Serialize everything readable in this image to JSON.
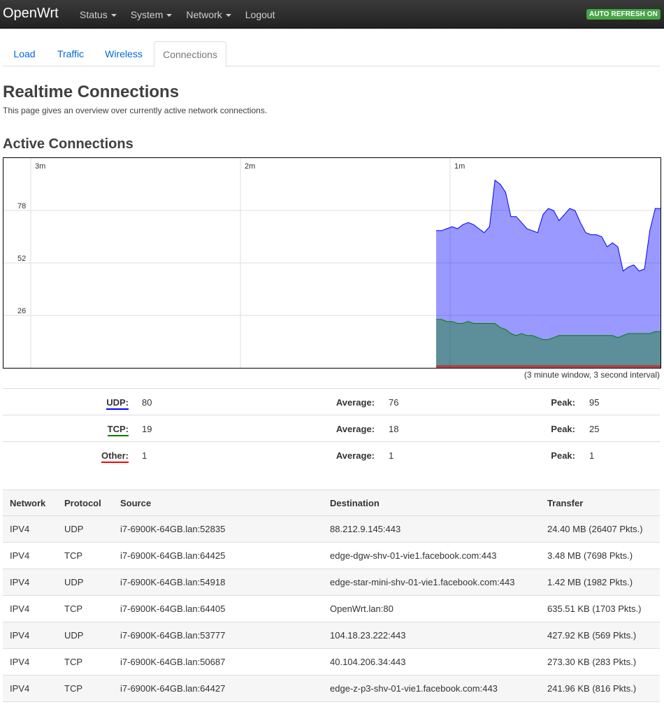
{
  "nav": {
    "brand": "OpenWrt",
    "menu": [
      {
        "label": "Status",
        "dropdown": true
      },
      {
        "label": "System",
        "dropdown": true
      },
      {
        "label": "Network",
        "dropdown": true
      },
      {
        "label": "Logout",
        "dropdown": false
      }
    ],
    "auto_refresh": "AUTO REFRESH ON"
  },
  "tabs": [
    {
      "label": "Load",
      "active": false
    },
    {
      "label": "Traffic",
      "active": false
    },
    {
      "label": "Wireless",
      "active": false
    },
    {
      "label": "Connections",
      "active": true
    }
  ],
  "page": {
    "title": "Realtime Connections",
    "description": "This page gives an overview over currently active network connections.",
    "section_title": "Active Connections",
    "window_caption": "(3 minute window, 3 second interval)"
  },
  "chart_data": {
    "type": "area",
    "x_ticks": [
      "3m",
      "2m",
      "1m"
    ],
    "y_ticks": [
      78,
      52,
      26
    ],
    "ylim": [
      0,
      104
    ],
    "grid": true,
    "series": [
      {
        "name": "UDP",
        "color": "#0000ff",
        "values": [
          68,
          68,
          69,
          70,
          69,
          71,
          72,
          71,
          69,
          67,
          70,
          93,
          91,
          87,
          75,
          75,
          72,
          69,
          68,
          67,
          76,
          79,
          78,
          73,
          76,
          79,
          78,
          72,
          67,
          66,
          66,
          65,
          60,
          62,
          60,
          48,
          50,
          51,
          48,
          49,
          68,
          79,
          79
        ]
      },
      {
        "name": "TCP",
        "color": "#008000",
        "values": [
          24,
          24,
          23,
          23,
          22,
          22,
          23,
          22,
          22,
          22,
          22,
          22,
          20,
          19,
          17,
          16,
          17,
          16,
          16,
          15,
          14,
          14,
          15,
          16,
          16,
          16,
          16,
          16,
          16,
          16,
          16,
          16,
          16,
          16,
          15,
          16,
          17,
          17,
          17,
          17,
          17,
          18,
          18
        ]
      },
      {
        "name": "Other",
        "color": "#ff0000",
        "values": [
          1,
          1,
          1,
          1,
          1,
          1,
          1,
          1,
          1,
          1,
          1,
          1,
          1,
          1,
          1,
          1,
          1,
          1,
          1,
          1,
          1,
          1,
          1,
          1,
          1,
          1,
          1,
          1,
          1,
          1,
          1,
          1,
          1,
          1,
          1,
          1,
          1,
          1,
          1,
          1,
          1,
          1,
          1
        ]
      }
    ]
  },
  "stats": [
    {
      "label": "UDP:",
      "cls": "udp",
      "current": "80",
      "avg_label": "Average:",
      "average": "76",
      "peak_label": "Peak:",
      "peak": "95"
    },
    {
      "label": "TCP:",
      "cls": "tcp",
      "current": "19",
      "avg_label": "Average:",
      "average": "18",
      "peak_label": "Peak:",
      "peak": "25"
    },
    {
      "label": "Other:",
      "cls": "other",
      "current": "1",
      "avg_label": "Average:",
      "average": "1",
      "peak_label": "Peak:",
      "peak": "1"
    }
  ],
  "connections": {
    "headers": [
      "Network",
      "Protocol",
      "Source",
      "Destination",
      "Transfer"
    ],
    "rows": [
      [
        "IPV4",
        "UDP",
        "i7-6900K-64GB.lan:52835",
        "88.212.9.145:443",
        "24.40 MB (26407 Pkts.)"
      ],
      [
        "IPV4",
        "TCP",
        "i7-6900K-64GB.lan:64425",
        "edge-dgw-shv-01-vie1.facebook.com:443",
        "3.48 MB (7698 Pkts.)"
      ],
      [
        "IPV4",
        "UDP",
        "i7-6900K-64GB.lan:54918",
        "edge-star-mini-shv-01-vie1.facebook.com:443",
        "1.42 MB (1982 Pkts.)"
      ],
      [
        "IPV4",
        "TCP",
        "i7-6900K-64GB.lan:64405",
        "OpenWrt.lan:80",
        "635.51 KB (1703 Pkts.)"
      ],
      [
        "IPV4",
        "UDP",
        "i7-6900K-64GB.lan:53777",
        "104.18.23.222:443",
        "427.92 KB (569 Pkts.)"
      ],
      [
        "IPV4",
        "TCP",
        "i7-6900K-64GB.lan:50687",
        "40.104.206.34:443",
        "273.30 KB (283 Pkts.)"
      ],
      [
        "IPV4",
        "TCP",
        "i7-6900K-64GB.lan:64427",
        "edge-z-p3-shv-01-vie1.facebook.com:443",
        "241.96 KB (816 Pkts.)"
      ]
    ]
  }
}
